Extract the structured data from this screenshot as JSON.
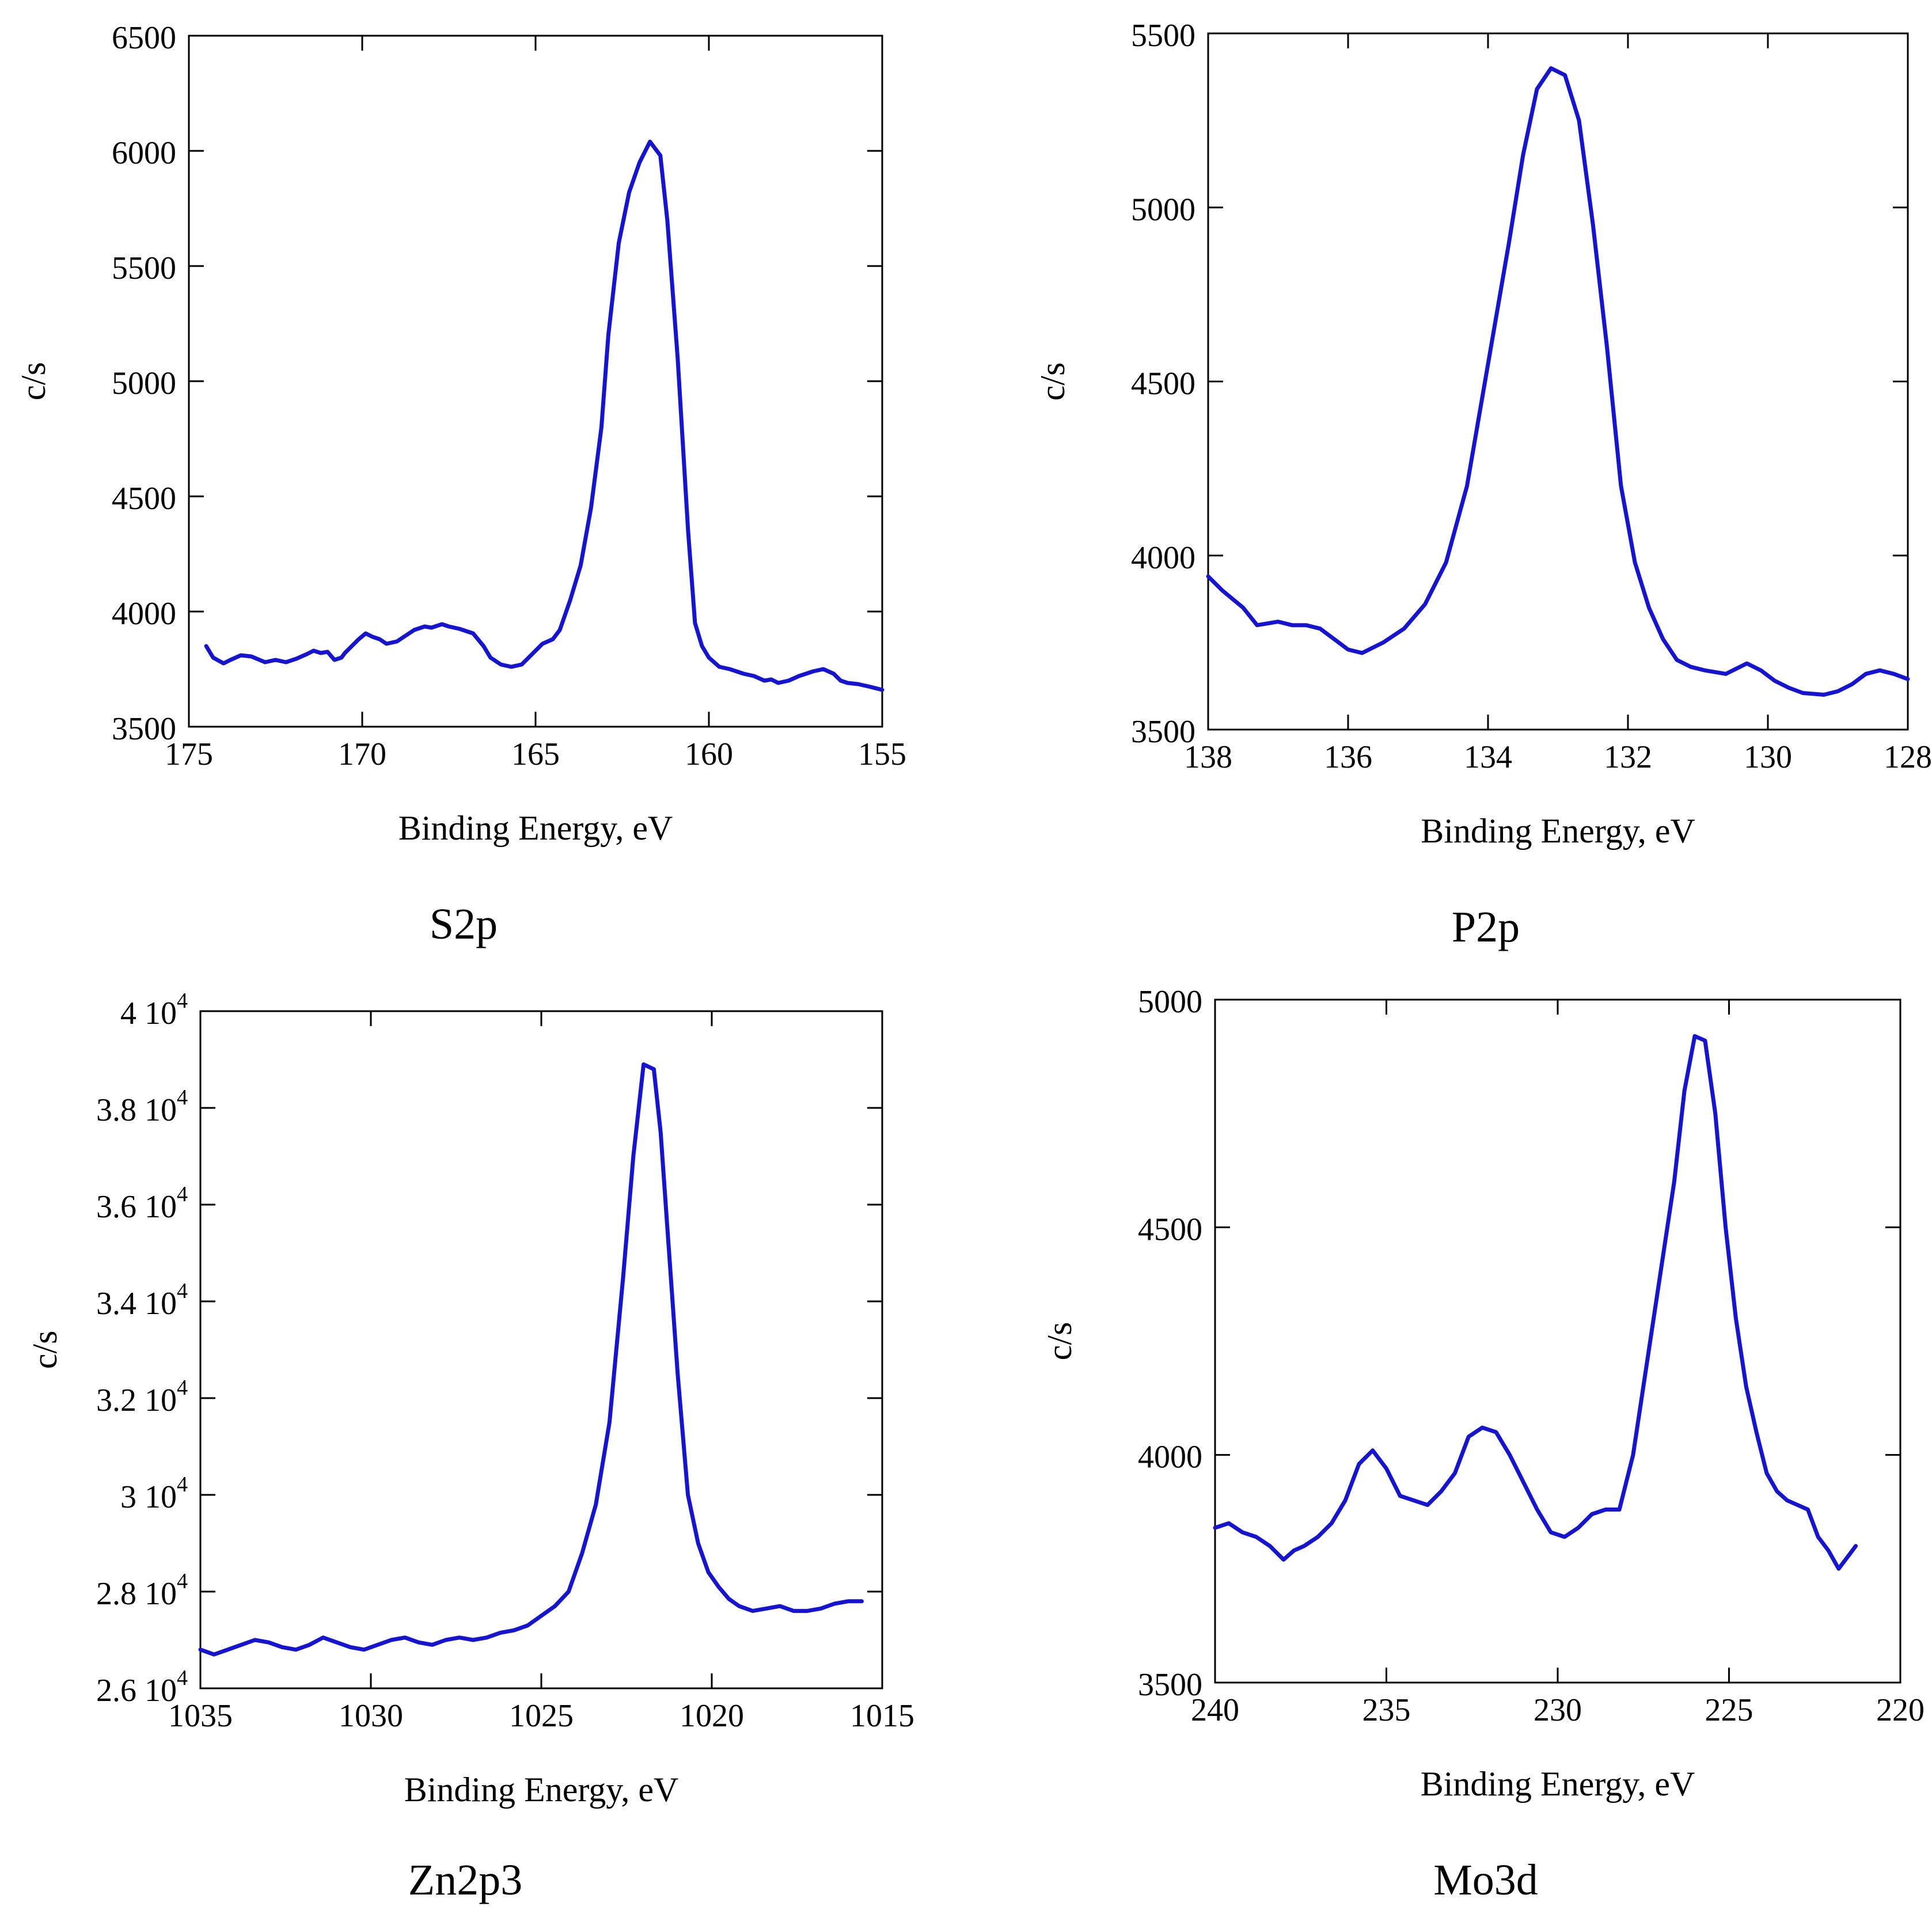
{
  "chart_data": [
    {
      "type": "line",
      "title": "S2p",
      "xlabel": "Binding Energy, eV",
      "ylabel": "c/s",
      "xlim": [
        175,
        155
      ],
      "ylim": [
        3500,
        6500
      ],
      "xticks": [
        175,
        170,
        165,
        160,
        155
      ],
      "xtick_labels": [
        "175",
        "170",
        "165",
        "160",
        "155"
      ],
      "yticks": [
        3500,
        4000,
        4500,
        5000,
        5500,
        6000,
        6500
      ],
      "ytick_labels": [
        "3500",
        "4000",
        "4500",
        "5000",
        "5500",
        "6000",
        "6500"
      ],
      "grid": false,
      "line_color": "#1414d2",
      "x": [
        174.5,
        174.3,
        174.0,
        173.8,
        173.5,
        173.2,
        172.8,
        172.5,
        172.2,
        171.9,
        171.6,
        171.4,
        171.2,
        171.0,
        170.8,
        170.6,
        170.5,
        170.3,
        170.1,
        169.9,
        169.7,
        169.5,
        169.3,
        169.0,
        168.8,
        168.5,
        168.2,
        168.0,
        167.7,
        167.5,
        167.2,
        167.0,
        166.8,
        166.5,
        166.3,
        166.0,
        165.7,
        165.4,
        165.2,
        165.0,
        164.8,
        164.5,
        164.3,
        164.0,
        163.7,
        163.4,
        163.1,
        162.9,
        162.6,
        162.3,
        162.0,
        161.7,
        161.4,
        161.2,
        160.9,
        160.6,
        160.4,
        160.2,
        160.0,
        159.7,
        159.4,
        159.2,
        159.0,
        158.7,
        158.4,
        158.2,
        158.0,
        157.7,
        157.4,
        157.2,
        157.0,
        156.7,
        156.4,
        156.2,
        156.0,
        155.7,
        155.4,
        155.0
      ],
      "values": [
        3850,
        3800,
        3775,
        3790,
        3810,
        3805,
        3780,
        3790,
        3780,
        3795,
        3815,
        3830,
        3820,
        3825,
        3790,
        3800,
        3820,
        3850,
        3880,
        3905,
        3890,
        3880,
        3860,
        3870,
        3890,
        3920,
        3935,
        3930,
        3945,
        3935,
        3925,
        3915,
        3905,
        3850,
        3800,
        3770,
        3760,
        3770,
        3800,
        3830,
        3860,
        3880,
        3920,
        4050,
        4200,
        4450,
        4800,
        5200,
        5600,
        5820,
        5950,
        6040,
        5980,
        5700,
        5100,
        4350,
        3950,
        3850,
        3800,
        3760,
        3750,
        3740,
        3730,
        3720,
        3700,
        3705,
        3690,
        3700,
        3720,
        3730,
        3740,
        3750,
        3730,
        3700,
        3690,
        3685,
        3675,
        3660
      ]
    },
    {
      "type": "line",
      "title": "P2p",
      "xlabel": "Binding Energy, eV",
      "ylabel": "c/s",
      "xlim": [
        138,
        128
      ],
      "ylim": [
        3500,
        5500
      ],
      "xticks": [
        138,
        136,
        134,
        132,
        130,
        128
      ],
      "xtick_labels": [
        "138",
        "136",
        "134",
        "132",
        "130",
        "128"
      ],
      "yticks": [
        3500,
        4000,
        4500,
        5000,
        5500
      ],
      "ytick_labels": [
        "3500",
        "4000",
        "4500",
        "5000",
        "5500"
      ],
      "grid": false,
      "line_color": "#1414d2",
      "x": [
        138.0,
        137.8,
        137.5,
        137.3,
        137.0,
        136.8,
        136.6,
        136.4,
        136.2,
        136.0,
        135.8,
        135.5,
        135.2,
        134.9,
        134.6,
        134.3,
        134.0,
        133.7,
        133.5,
        133.3,
        133.1,
        132.9,
        132.7,
        132.5,
        132.3,
        132.1,
        131.9,
        131.7,
        131.5,
        131.3,
        131.1,
        130.9,
        130.6,
        130.3,
        130.1,
        129.9,
        129.7,
        129.5,
        129.2,
        129.0,
        128.8,
        128.6,
        128.4,
        128.2,
        128.0
      ],
      "values": [
        3940,
        3900,
        3850,
        3800,
        3810,
        3800,
        3800,
        3790,
        3760,
        3730,
        3720,
        3750,
        3790,
        3860,
        3980,
        4200,
        4550,
        4900,
        5150,
        5340,
        5400,
        5380,
        5250,
        4950,
        4600,
        4200,
        3980,
        3850,
        3760,
        3700,
        3680,
        3670,
        3660,
        3690,
        3670,
        3640,
        3620,
        3605,
        3600,
        3610,
        3630,
        3660,
        3670,
        3660,
        3645
      ]
    },
    {
      "type": "line",
      "title": "Zn2p3",
      "xlabel": "Binding Energy, eV",
      "ylabel": "c/s",
      "xlim": [
        1035,
        1015
      ],
      "ylim": [
        26000,
        40000
      ],
      "xticks": [
        1035,
        1030,
        1025,
        1020,
        1015
      ],
      "xtick_labels": [
        "1035",
        "1030",
        "1025",
        "1020",
        "1015"
      ],
      "yticks": [
        26000,
        28000,
        30000,
        32000,
        34000,
        36000,
        38000,
        40000
      ],
      "ytick_labels": [
        "2.6 10",
        "2.8 10",
        "3 10",
        "3.2 10",
        "3.4 10",
        "3.6 10",
        "3.8 10",
        "4 10"
      ],
      "ytick_exponent": "4",
      "grid": false,
      "line_color": "#1414d2",
      "x": [
        1035.0,
        1034.6,
        1034.2,
        1033.8,
        1033.4,
        1033.0,
        1032.6,
        1032.2,
        1031.8,
        1031.4,
        1031.0,
        1030.6,
        1030.2,
        1029.8,
        1029.4,
        1029.0,
        1028.6,
        1028.2,
        1027.8,
        1027.4,
        1027.0,
        1026.6,
        1026.2,
        1025.8,
        1025.4,
        1025.0,
        1024.6,
        1024.2,
        1023.8,
        1023.4,
        1023.0,
        1022.6,
        1022.3,
        1022.0,
        1021.7,
        1021.5,
        1021.3,
        1021.0,
        1020.7,
        1020.4,
        1020.1,
        1019.8,
        1019.5,
        1019.2,
        1018.8,
        1018.4,
        1018.0,
        1017.6,
        1017.2,
        1016.8,
        1016.4,
        1016.0,
        1015.6
      ],
      "values": [
        26800,
        26700,
        26800,
        26900,
        27000,
        26950,
        26850,
        26800,
        26900,
        27050,
        26950,
        26850,
        26800,
        26900,
        27000,
        27050,
        26950,
        26900,
        27000,
        27050,
        27000,
        27050,
        27150,
        27200,
        27300,
        27500,
        27700,
        28000,
        28800,
        29800,
        31500,
        34500,
        37000,
        38900,
        38800,
        37500,
        35500,
        32500,
        30000,
        29000,
        28400,
        28100,
        27850,
        27700,
        27600,
        27650,
        27700,
        27600,
        27600,
        27650,
        27750,
        27800,
        27800
      ]
    },
    {
      "type": "line",
      "title": "Mo3d",
      "xlabel": "Binding Energy, eV",
      "ylabel": "c/s",
      "xlim": [
        240,
        220
      ],
      "ylim": [
        3500,
        5000
      ],
      "xticks": [
        240,
        235,
        230,
        225,
        220
      ],
      "xtick_labels": [
        "240",
        "235",
        "230",
        "225",
        "220"
      ],
      "yticks": [
        3500,
        4000,
        4500,
        5000
      ],
      "ytick_labels": [
        "3500",
        "4000",
        "4500",
        "5000"
      ],
      "grid": false,
      "line_color": "#1414d2",
      "x": [
        240.0,
        239.6,
        239.2,
        238.8,
        238.4,
        238.0,
        237.7,
        237.4,
        237.0,
        236.6,
        236.2,
        235.8,
        235.4,
        235.0,
        234.6,
        234.2,
        233.8,
        233.4,
        233.0,
        232.6,
        232.2,
        231.8,
        231.4,
        231.0,
        230.6,
        230.2,
        229.8,
        229.4,
        229.0,
        228.6,
        228.2,
        227.8,
        227.4,
        227.0,
        226.6,
        226.3,
        226.0,
        225.7,
        225.4,
        225.1,
        224.8,
        224.5,
        224.2,
        223.9,
        223.6,
        223.3,
        223.0,
        222.7,
        222.4,
        222.1,
        221.8,
        221.5,
        221.3
      ],
      "values": [
        3840,
        3850,
        3830,
        3820,
        3800,
        3770,
        3790,
        3800,
        3820,
        3850,
        3900,
        3980,
        4010,
        3970,
        3910,
        3900,
        3890,
        3920,
        3960,
        4040,
        4060,
        4050,
        4000,
        3940,
        3880,
        3830,
        3820,
        3840,
        3870,
        3880,
        3880,
        4000,
        4200,
        4400,
        4600,
        4800,
        4920,
        4910,
        4750,
        4500,
        4300,
        4150,
        4050,
        3960,
        3920,
        3900,
        3890,
        3880,
        3820,
        3790,
        3750,
        3780,
        3800
      ]
    }
  ]
}
